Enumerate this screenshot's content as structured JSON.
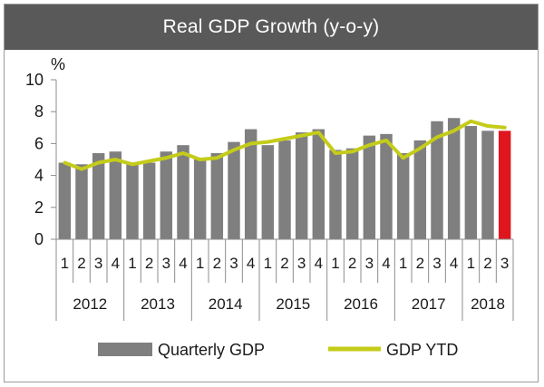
{
  "chart_data": {
    "type": "bar",
    "title": "Real GDP Growth (y-o-y)",
    "ylabel": "%",
    "ylim": [
      0,
      10
    ],
    "yticks": [
      0,
      2,
      4,
      6,
      8,
      10
    ],
    "grid": false,
    "legend": "bottom",
    "years": [
      "2012",
      "2013",
      "2014",
      "2015",
      "2016",
      "2017",
      "2018"
    ],
    "quarters": [
      "1",
      "2",
      "3",
      "4",
      "1",
      "2",
      "3",
      "4",
      "1",
      "2",
      "3",
      "4",
      "1",
      "2",
      "3",
      "4",
      "1",
      "2",
      "3",
      "4",
      "1",
      "2",
      "3",
      "4",
      "1",
      "2",
      "3"
    ],
    "series": [
      {
        "name": "Quarterly GDP",
        "kind": "bar",
        "color": "#7f7f7f",
        "highlight_color": "#e0161e",
        "highlight_index": 26,
        "values": [
          4.8,
          4.7,
          5.4,
          5.5,
          4.8,
          4.8,
          5.5,
          5.9,
          5.1,
          5.4,
          6.1,
          6.9,
          5.9,
          6.2,
          6.7,
          6.9,
          5.6,
          5.7,
          6.5,
          6.6,
          5.4,
          6.2,
          7.4,
          7.6,
          7.1,
          6.8,
          6.8
        ]
      },
      {
        "name": "GDP YTD",
        "kind": "line",
        "color": "#c4cc1a",
        "values": [
          4.8,
          4.4,
          4.8,
          5.0,
          4.7,
          4.9,
          5.1,
          5.4,
          5.0,
          5.1,
          5.6,
          6.0,
          6.1,
          6.3,
          6.5,
          6.7,
          5.4,
          5.5,
          5.9,
          6.2,
          5.1,
          5.7,
          6.4,
          6.8,
          7.4,
          7.1,
          7.0
        ]
      }
    ]
  }
}
